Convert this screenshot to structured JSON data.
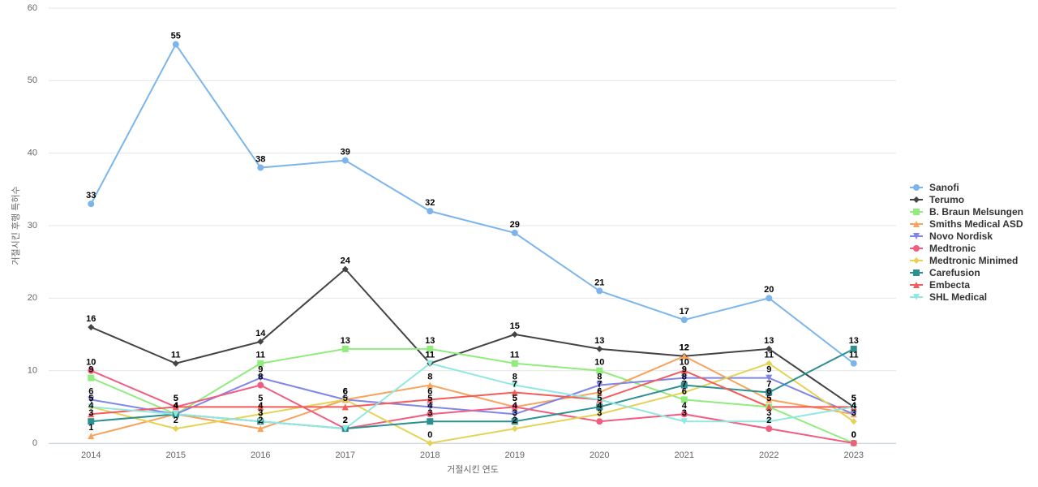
{
  "chart_data": {
    "type": "line",
    "x_label": "거절시킨 연도",
    "y_label": "거절시킨 후행 특허수",
    "categories": [
      "2014",
      "2015",
      "2016",
      "2017",
      "2018",
      "2019",
      "2020",
      "2021",
      "2022",
      "2023"
    ],
    "ylim": [
      0,
      60
    ],
    "yticks": [
      0,
      10,
      20,
      30,
      40,
      50,
      60
    ],
    "grid": true,
    "legend": "right",
    "series": [
      {
        "name": "Sanofi",
        "color": "#7cb5ec",
        "marker": "circle",
        "values": [
          33,
          55,
          38,
          39,
          32,
          29,
          21,
          17,
          20,
          11
        ]
      },
      {
        "name": "Terumo",
        "color": "#434348",
        "marker": "diamond",
        "values": [
          16,
          11,
          14,
          24,
          11,
          15,
          13,
          12,
          13,
          5
        ]
      },
      {
        "name": "B. Braun Melsungen",
        "color": "#90ed7d",
        "marker": "square",
        "values": [
          9,
          4,
          11,
          13,
          13,
          11,
          10,
          6,
          5,
          0
        ]
      },
      {
        "name": "Smiths Medical ASD",
        "color": "#f7a35c",
        "marker": "triangle",
        "values": [
          1,
          4,
          2,
          6,
          8,
          5,
          7,
          12,
          6,
          4
        ]
      },
      {
        "name": "Novo Nordisk",
        "color": "#8085e9",
        "marker": "triangle-down",
        "values": [
          6,
          4,
          9,
          6,
          5,
          4,
          8,
          9,
          9,
          4
        ]
      },
      {
        "name": "Medtronic",
        "color": "#f15c80",
        "marker": "circle",
        "values": [
          10,
          5,
          8,
          2,
          4,
          5,
          3,
          4,
          2,
          0
        ]
      },
      {
        "name": "Medtronic Minimed",
        "color": "#e4d354",
        "marker": "diamond",
        "values": [
          5,
          2,
          4,
          6,
          0,
          2,
          4,
          7,
          11,
          3
        ]
      },
      {
        "name": "Carefusion",
        "color": "#2b908f",
        "marker": "square",
        "values": [
          3,
          4,
          3,
          2,
          3,
          3,
          5,
          8,
          7,
          13
        ]
      },
      {
        "name": "Embecta",
        "color": "#f45b5b",
        "marker": "triangle",
        "values": [
          4,
          5,
          5,
          5,
          6,
          7,
          6,
          10,
          5,
          5
        ]
      },
      {
        "name": "SHL Medical",
        "color": "#91e8e1",
        "marker": "triangle-down",
        "values": [
          5,
          4,
          3,
          2,
          11,
          8,
          6,
          3,
          3,
          5
        ]
      }
    ]
  }
}
